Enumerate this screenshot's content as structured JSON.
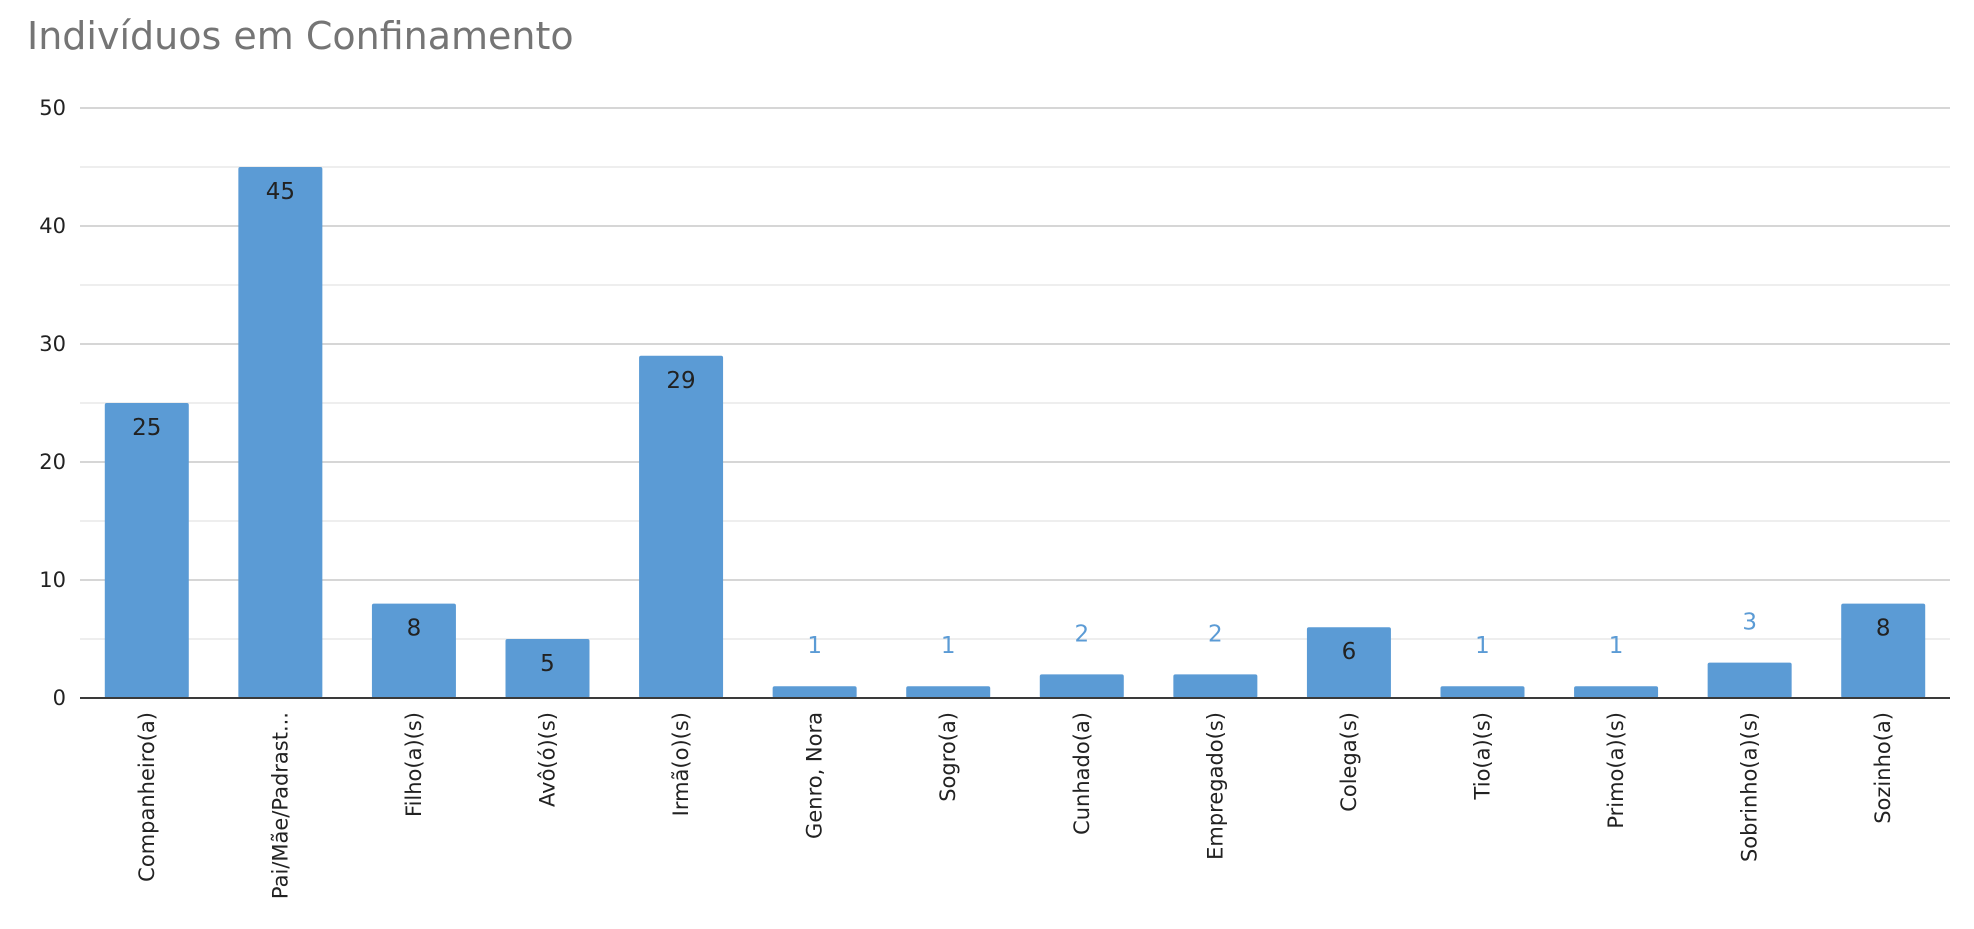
{
  "chart_data": {
    "type": "bar",
    "title": "Indivíduos em Confinamento",
    "xlabel": "",
    "ylabel": "",
    "ylim": [
      0,
      50
    ],
    "yticks": [
      0,
      10,
      20,
      30,
      40,
      50
    ],
    "grid": true,
    "legend": "none",
    "categories": [
      "Companheiro(a)",
      "Pai/Mãe/Padrast...",
      "Filho(a)(s)",
      "Avô(ó)(s)",
      "Irmã(o)(s)",
      "Genro, Nora",
      "Sogro(a)",
      "Cunhado(a)",
      "Empregado(s)",
      "Colega(s)",
      "Tio(a)(s)",
      "Primo(a)(s)",
      "Sobrinho(a)(s)",
      "Sozinho(a)"
    ],
    "values": [
      25,
      45,
      8,
      5,
      29,
      1,
      1,
      2,
      2,
      6,
      1,
      1,
      3,
      8
    ],
    "data_labels": [
      "25",
      "45",
      "8",
      "5",
      "29",
      "1",
      "1",
      "2",
      "2",
      "6",
      "1",
      "1",
      "3",
      "8"
    ],
    "colors": {
      "bar": "#5b9bd5",
      "label_inside": "#222222",
      "label_outside": "#5b9bd5",
      "title": "#757575"
    }
  }
}
